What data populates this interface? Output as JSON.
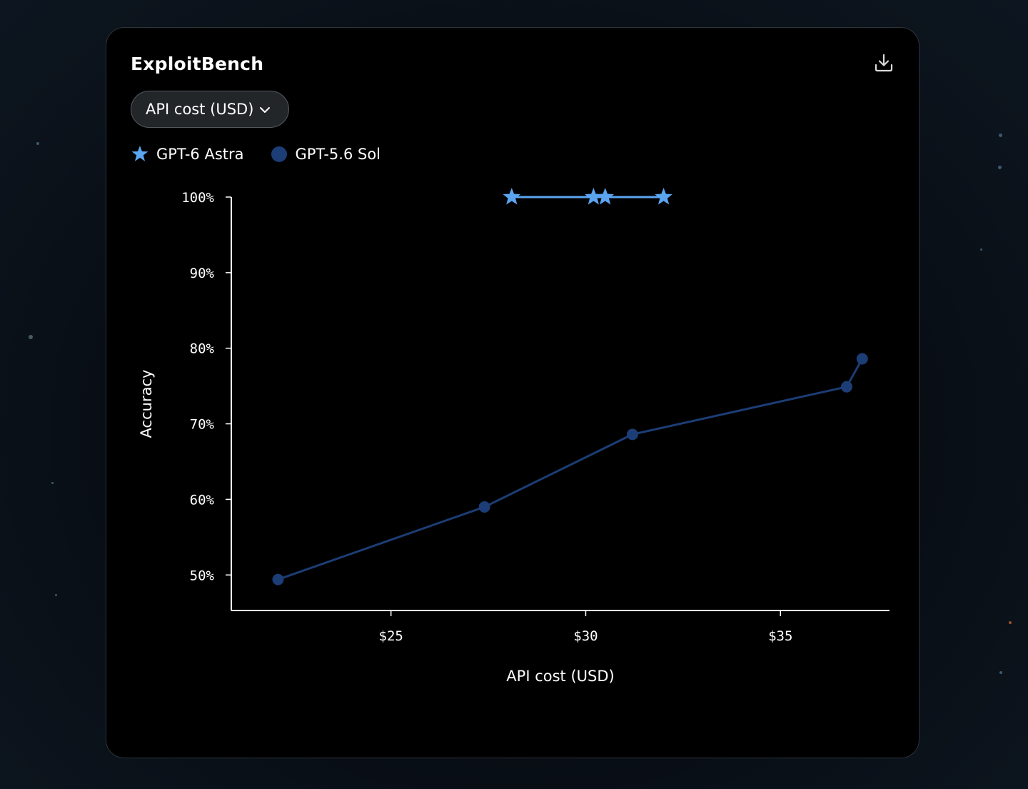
{
  "card": {
    "title": "ExploitBench"
  },
  "toolbar": {
    "download_icon": "download-icon"
  },
  "dropdown": {
    "label": "API cost (USD)",
    "icon": "chevron-down-icon"
  },
  "legend": [
    {
      "label": "GPT-6 Astra",
      "marker": "star",
      "color": "#5ba4f0"
    },
    {
      "label": "GPT-5.6 Sol",
      "marker": "circle",
      "color": "#1c3d75"
    }
  ],
  "chart_data": {
    "type": "line",
    "title": "ExploitBench",
    "xlabel": "API cost (USD)",
    "ylabel": "Accuracy",
    "xlim": [
      20.9,
      37.8
    ],
    "ylim": [
      45.3,
      100
    ],
    "x_ticks": [
      25,
      30,
      35
    ],
    "x_tick_labels": [
      "$25",
      "$30",
      "$35"
    ],
    "y_ticks": [
      50,
      60,
      70,
      80,
      90,
      100
    ],
    "y_tick_labels": [
      "50%",
      "60%",
      "70%",
      "80%",
      "90%",
      "100%"
    ],
    "grid": false,
    "legend_position": "top-left",
    "series": [
      {
        "name": "GPT-6 Astra",
        "marker": "star",
        "color": "#5ba4f0",
        "points": [
          {
            "x": 28.1,
            "y": 100
          },
          {
            "x": 30.2,
            "y": 100
          },
          {
            "x": 30.5,
            "y": 100
          },
          {
            "x": 32.0,
            "y": 100
          }
        ]
      },
      {
        "name": "GPT-5.6 Sol",
        "marker": "circle",
        "color": "#1c3d75",
        "points": [
          {
            "x": 22.1,
            "y": 49.4
          },
          {
            "x": 27.4,
            "y": 59.0
          },
          {
            "x": 31.2,
            "y": 68.6
          },
          {
            "x": 36.7,
            "y": 74.9
          },
          {
            "x": 37.1,
            "y": 78.6
          }
        ]
      }
    ]
  }
}
